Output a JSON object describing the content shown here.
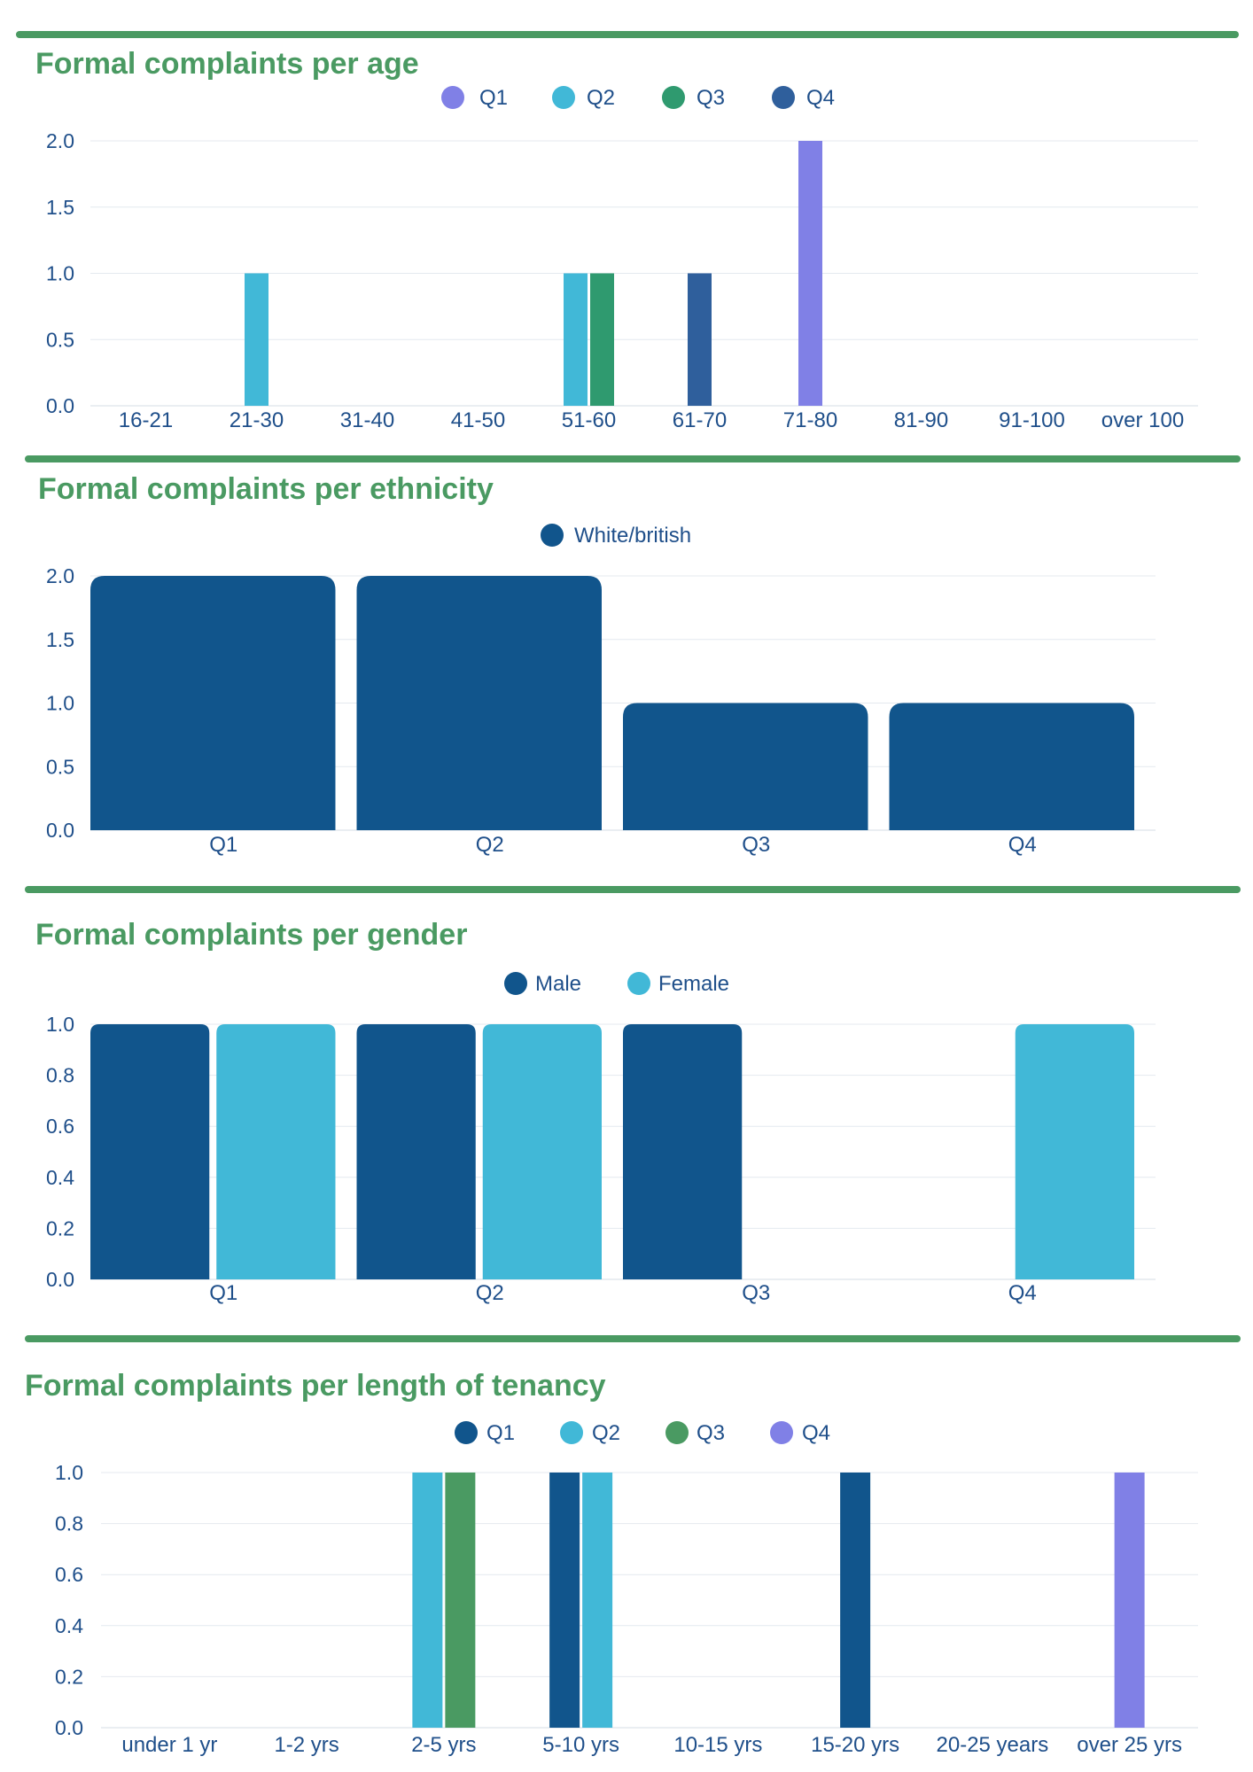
{
  "chart_data": [
    {
      "type": "bar",
      "title": "Formal complaints per age",
      "categories": [
        "16-21",
        "21-30",
        "31-40",
        "41-50",
        "51-60",
        "61-70",
        "71-80",
        "81-90",
        "91-100",
        "over 100"
      ],
      "series": [
        {
          "name": "Q1",
          "color": "#8080e6",
          "values": [
            0,
            0,
            0,
            0,
            0,
            0,
            2,
            0,
            0,
            0
          ]
        },
        {
          "name": "Q2",
          "color": "#41b8d7",
          "values": [
            0,
            1,
            0,
            0,
            1,
            0,
            0,
            0,
            0,
            0
          ]
        },
        {
          "name": "Q3",
          "color": "#2f9a6f",
          "values": [
            0,
            0,
            0,
            0,
            1,
            0,
            0,
            0,
            0,
            0
          ]
        },
        {
          "name": "Q4",
          "color": "#2f5f9c",
          "values": [
            0,
            0,
            0,
            0,
            0,
            1,
            0,
            0,
            0,
            0
          ]
        }
      ],
      "yticks": [
        "0.0",
        "0.5",
        "1.0",
        "1.5",
        "2.0"
      ],
      "ylim": [
        0,
        2
      ],
      "legend": "top-center",
      "grid": true,
      "bar_style": "sparse"
    },
    {
      "type": "bar",
      "title": "Formal complaints per ethnicity",
      "categories": [
        "Q1",
        "Q2",
        "Q3",
        "Q4"
      ],
      "series": [
        {
          "name": "White/british",
          "color": "#11558c",
          "values": [
            2,
            2,
            1,
            1
          ]
        }
      ],
      "yticks": [
        "0.0",
        "0.5",
        "1.0",
        "1.5",
        "2.0"
      ],
      "ylim": [
        0,
        2
      ],
      "legend": "top-center",
      "grid": true,
      "bar_style": "grouped"
    },
    {
      "type": "bar",
      "title": "Formal complaints per gender",
      "categories": [
        "Q1",
        "Q2",
        "Q3",
        "Q4"
      ],
      "series": [
        {
          "name": "Male",
          "color": "#11558c",
          "values": [
            1,
            1,
            1,
            0
          ]
        },
        {
          "name": "Female",
          "color": "#41b8d7",
          "values": [
            1,
            1,
            0,
            1
          ]
        }
      ],
      "yticks": [
        "0.0",
        "0.2",
        "0.4",
        "0.6",
        "0.8",
        "1.0"
      ],
      "ylim": [
        0,
        1
      ],
      "legend": "top-center",
      "grid": true,
      "bar_style": "grouped"
    },
    {
      "type": "bar",
      "title": "Formal complaints per length of tenancy",
      "categories": [
        "under 1 yr",
        "1-2 yrs",
        "2-5 yrs",
        "5-10 yrs",
        "10-15 yrs",
        "15-20 yrs",
        "20-25 years",
        "over 25 yrs"
      ],
      "series": [
        {
          "name": "Q1",
          "color": "#11558c",
          "values": [
            0,
            0,
            0,
            1,
            0,
            1,
            0,
            0
          ]
        },
        {
          "name": "Q2",
          "color": "#41b8d7",
          "values": [
            0,
            0,
            1,
            1,
            0,
            0,
            0,
            0
          ]
        },
        {
          "name": "Q3",
          "color": "#4a9a62",
          "values": [
            0,
            0,
            1,
            0,
            0,
            0,
            0,
            0
          ]
        },
        {
          "name": "Q4",
          "color": "#8080e6",
          "values": [
            0,
            0,
            0,
            0,
            0,
            0,
            0,
            1
          ]
        }
      ],
      "yticks": [
        "0.0",
        "0.2",
        "0.4",
        "0.6",
        "0.8",
        "1.0"
      ],
      "ylim": [
        0,
        1
      ],
      "legend": "top-center",
      "grid": true,
      "bar_style": "sparse"
    }
  ]
}
